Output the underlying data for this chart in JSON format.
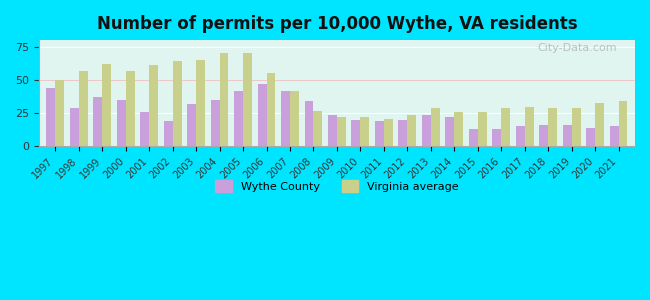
{
  "title": "Number of permits per 10,000 Wythe, VA residents",
  "years": [
    1997,
    1998,
    1999,
    2000,
    2001,
    2002,
    2003,
    2004,
    2005,
    2006,
    2007,
    2008,
    2009,
    2010,
    2011,
    2012,
    2013,
    2014,
    2015,
    2016,
    2017,
    2018,
    2019,
    2020,
    2021
  ],
  "wythe_county": [
    44,
    29,
    37,
    35,
    26,
    19,
    32,
    35,
    42,
    47,
    42,
    34,
    24,
    20,
    19,
    20,
    24,
    22,
    13,
    13,
    15,
    16,
    16,
    14,
    15
  ],
  "virginia_avg": [
    50,
    57,
    62,
    57,
    61,
    64,
    65,
    70,
    70,
    55,
    42,
    27,
    22,
    22,
    21,
    24,
    29,
    26,
    26,
    29,
    30,
    29,
    29,
    33,
    34
  ],
  "wythe_color": "#c9a0dc",
  "virginia_color": "#c8d08c",
  "bg_color": "#e0f5f0",
  "outer_bg": "#00e5ff",
  "yticks": [
    0,
    25,
    50,
    75
  ],
  "ylim": [
    0,
    80
  ],
  "bar_width": 0.38,
  "legend_wythe": "Wythe County",
  "legend_va": "Virginia average"
}
